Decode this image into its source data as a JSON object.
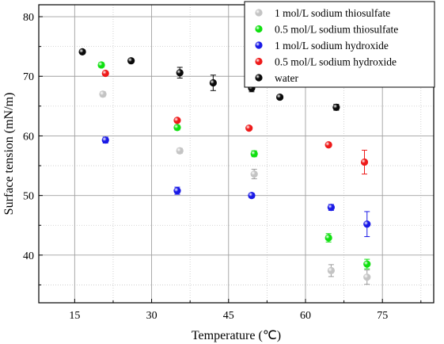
{
  "chart_data": {
    "type": "scatter",
    "xlabel": "Temperature (℃)",
    "ylabel": "Surface tension (mN/m)",
    "xlim": [
      8,
      85
    ],
    "ylim": [
      32,
      82
    ],
    "x_ticks": [
      15,
      30,
      45,
      60,
      75
    ],
    "y_ticks": [
      40,
      50,
      60,
      70,
      80
    ],
    "grid": true,
    "legend_position": "top-right",
    "series": [
      {
        "name": "1 mol/L sodium thiosulfate",
        "color": "#c4c4c4",
        "points": [
          {
            "x": 20.5,
            "y": 67.0,
            "err": 0.4
          },
          {
            "x": 35.5,
            "y": 57.5,
            "err": 0.4
          },
          {
            "x": 50.0,
            "y": 53.6,
            "err": 0.8
          },
          {
            "x": 65.0,
            "y": 37.4,
            "err": 1.0
          },
          {
            "x": 72.0,
            "y": 36.3,
            "err": 1.2
          }
        ]
      },
      {
        "name": "0.5 mol/L sodium thiosulfate",
        "color": "#10e010",
        "points": [
          {
            "x": 20.2,
            "y": 71.9,
            "err": 0.4
          },
          {
            "x": 35.0,
            "y": 61.4,
            "err": 0.4
          },
          {
            "x": 50.0,
            "y": 57.0,
            "err": 0.5
          },
          {
            "x": 64.5,
            "y": 42.9,
            "err": 0.7
          },
          {
            "x": 72.0,
            "y": 38.5,
            "err": 0.8
          }
        ]
      },
      {
        "name": "1 mol/L sodium hydroxide",
        "color": "#1a1ae6",
        "points": [
          {
            "x": 21.0,
            "y": 59.3,
            "err": 0.5
          },
          {
            "x": 35.0,
            "y": 50.8,
            "err": 0.6
          },
          {
            "x": 49.5,
            "y": 50.0,
            "err": 0.4
          },
          {
            "x": 65.0,
            "y": 48.0,
            "err": 0.5
          },
          {
            "x": 72.0,
            "y": 45.2,
            "err": 2.1
          }
        ]
      },
      {
        "name": "0.5 mol/L sodium hydroxide",
        "color": "#ee1a1a",
        "points": [
          {
            "x": 21.0,
            "y": 70.5,
            "err": 0.3
          },
          {
            "x": 35.0,
            "y": 62.6,
            "err": 0.3
          },
          {
            "x": 49.0,
            "y": 61.3,
            "err": 0.3
          },
          {
            "x": 64.5,
            "y": 58.5,
            "err": 0.3
          },
          {
            "x": 71.5,
            "y": 55.6,
            "err": 2.0
          }
        ]
      },
      {
        "name": "water",
        "color": "#0a0a0a",
        "points": [
          {
            "x": 16.5,
            "y": 74.1,
            "err": 0.3
          },
          {
            "x": 26.0,
            "y": 72.6,
            "err": 0.3
          },
          {
            "x": 35.5,
            "y": 70.6,
            "err": 0.9
          },
          {
            "x": 42.0,
            "y": 68.9,
            "err": 1.3
          },
          {
            "x": 49.5,
            "y": 68.0,
            "err": 0.6
          },
          {
            "x": 55.0,
            "y": 66.5,
            "err": 0.3
          },
          {
            "x": 66.0,
            "y": 64.8,
            "err": 0.5
          }
        ]
      }
    ]
  }
}
